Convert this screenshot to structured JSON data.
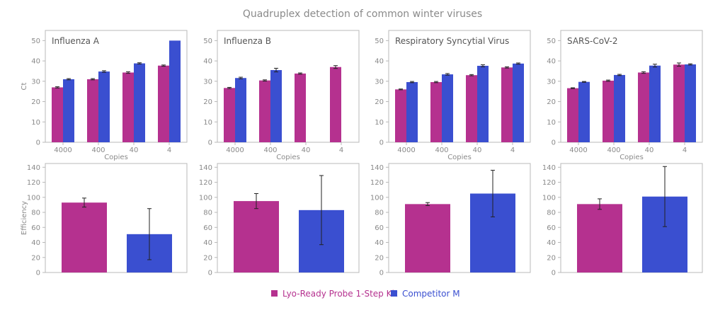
{
  "title": "Quadruplex detection of common winter viruses",
  "colors": {
    "kit": "#b5318f",
    "competitor": "#3a4fd0",
    "axis": "#9a9a9a",
    "text": "#8a8a8a"
  },
  "legend": [
    {
      "name": "Lyo-Ready Probe 1-Step Kit",
      "color": "#b5318f"
    },
    {
      "name": "Competitor M",
      "color": "#3a4fd0"
    }
  ],
  "chart_data": [
    {
      "type": "bar",
      "panel": "Influenza A",
      "title": "Influenza A",
      "xlabel": "Copies",
      "ylabel": "Ct",
      "ylim": [
        0,
        55
      ],
      "yticks": [
        0,
        10,
        20,
        30,
        40,
        50
      ],
      "categories": [
        "4000",
        "400",
        "40",
        "4"
      ],
      "series": [
        {
          "name": "Lyo-Ready Probe 1-Step Kit",
          "values": [
            27,
            31,
            34.3,
            37.7
          ],
          "errors": [
            0.3,
            0.3,
            0.4,
            0.3
          ]
        },
        {
          "name": "Competitor M",
          "values": [
            31,
            34.8,
            38.8,
            50
          ],
          "errors": [
            0.3,
            0.4,
            0.3,
            0
          ]
        }
      ]
    },
    {
      "type": "bar",
      "panel": "Influenza B",
      "title": "Influenza B",
      "xlabel": "Copies",
      "ylabel": "",
      "ylim": [
        0,
        55
      ],
      "yticks": [
        0,
        10,
        20,
        30,
        40,
        50
      ],
      "categories": [
        "4000",
        "400",
        "40",
        "4"
      ],
      "series": [
        {
          "name": "Lyo-Ready Probe 1-Step Kit",
          "values": [
            26.7,
            30.4,
            33.8,
            37
          ],
          "errors": [
            0.3,
            0.3,
            0.3,
            0.7
          ]
        },
        {
          "name": "Competitor M",
          "values": [
            31.6,
            35.5,
            null,
            null
          ],
          "errors": [
            0.4,
            0.9,
            0,
            0
          ]
        }
      ]
    },
    {
      "type": "bar",
      "panel": "Respiratory Syncytial Virus",
      "title": "Respiratory Syncytial Virus",
      "xlabel": "Copies",
      "ylabel": "",
      "ylim": [
        0,
        55
      ],
      "yticks": [
        0,
        10,
        20,
        30,
        40,
        50
      ],
      "categories": [
        "4000",
        "400",
        "40",
        "4"
      ],
      "series": [
        {
          "name": "Lyo-Ready Probe 1-Step Kit",
          "values": [
            26,
            29.6,
            33,
            36.8
          ],
          "errors": [
            0.2,
            0.3,
            0.3,
            0.3
          ]
        },
        {
          "name": "Competitor M",
          "values": [
            29.6,
            33.4,
            37.6,
            38.7
          ],
          "errors": [
            0.3,
            0.4,
            0.5,
            0.3
          ]
        }
      ]
    },
    {
      "type": "bar",
      "panel": "SARS-CoV-2",
      "title": "SARS-CoV-2",
      "xlabel": "Copies",
      "ylabel": "",
      "ylim": [
        0,
        55
      ],
      "yticks": [
        0,
        10,
        20,
        30,
        40,
        50
      ],
      "categories": [
        "4000",
        "400",
        "40",
        "4"
      ],
      "series": [
        {
          "name": "Lyo-Ready Probe 1-Step Kit",
          "values": [
            26.6,
            30.3,
            34.3,
            38.2
          ],
          "errors": [
            0.2,
            0.3,
            0.4,
            0.8
          ]
        },
        {
          "name": "Competitor M",
          "values": [
            29.7,
            33.1,
            37.7,
            38.3
          ],
          "errors": [
            0.2,
            0.3,
            0.7,
            0.3
          ]
        }
      ]
    },
    {
      "type": "bar",
      "panel": "Influenza A efficiency",
      "title": "",
      "xlabel": "",
      "ylabel": "Efficiency",
      "ylim": [
        0,
        145
      ],
      "yticks": [
        0,
        20,
        40,
        60,
        80,
        100,
        120,
        140
      ],
      "categories": [
        "Lyo-Ready Probe 1-Step Kit",
        "Competitor M"
      ],
      "values": [
        93,
        51
      ],
      "errors": [
        6,
        34
      ]
    },
    {
      "type": "bar",
      "panel": "Influenza B efficiency",
      "title": "",
      "xlabel": "",
      "ylabel": "",
      "ylim": [
        0,
        145
      ],
      "yticks": [
        0,
        20,
        40,
        60,
        80,
        100,
        120,
        140
      ],
      "categories": [
        "Lyo-Ready Probe 1-Step Kit",
        "Competitor M"
      ],
      "values": [
        95,
        83
      ],
      "errors": [
        10,
        46
      ]
    },
    {
      "type": "bar",
      "panel": "Respiratory Syncytial Virus efficiency",
      "title": "",
      "xlabel": "",
      "ylabel": "",
      "ylim": [
        0,
        145
      ],
      "yticks": [
        0,
        20,
        40,
        60,
        80,
        100,
        120,
        140
      ],
      "categories": [
        "Lyo-Ready Probe 1-Step Kit",
        "Competitor M"
      ],
      "values": [
        91,
        105
      ],
      "errors": [
        2,
        31
      ]
    },
    {
      "type": "bar",
      "panel": "SARS-CoV-2 efficiency",
      "title": "",
      "xlabel": "",
      "ylabel": "",
      "ylim": [
        0,
        145
      ],
      "yticks": [
        0,
        20,
        40,
        60,
        80,
        100,
        120,
        140
      ],
      "categories": [
        "Lyo-Ready Probe 1-Step Kit",
        "Competitor M"
      ],
      "values": [
        91,
        101
      ],
      "errors": [
        7,
        40
      ]
    }
  ]
}
